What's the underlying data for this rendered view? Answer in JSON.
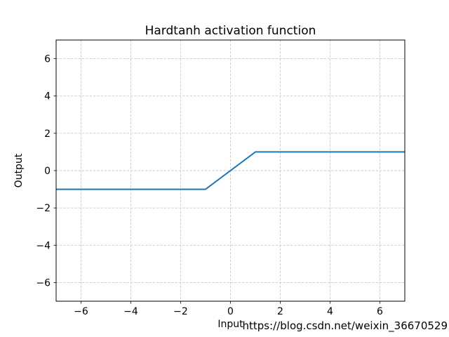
{
  "chart_data": {
    "type": "line",
    "title": "Hardtanh activation function",
    "xlabel": "Input",
    "ylabel": "Output",
    "xlim": [
      -7,
      7
    ],
    "ylim": [
      -7,
      7
    ],
    "xticks": [
      -6,
      -4,
      -2,
      0,
      2,
      4,
      6
    ],
    "yticks": [
      -6,
      -4,
      -2,
      0,
      2,
      4,
      6
    ],
    "grid": true,
    "grid_linestyle": "dashed",
    "legend": "none",
    "series": [
      {
        "name": "hardtanh",
        "color": "#1f77b4",
        "points": [
          [
            -7,
            -1
          ],
          [
            -1,
            -1
          ],
          [
            1,
            1
          ],
          [
            7,
            1
          ]
        ]
      }
    ]
  },
  "watermark": {
    "text": "https://blog.csdn.net/weixin_36670529",
    "color": "#e7e7e7"
  },
  "colors": {
    "background": "#ffffff",
    "spine": "#000000",
    "grid": "#c9c9c9",
    "tick": "#000000",
    "line": "#1f77b4"
  }
}
